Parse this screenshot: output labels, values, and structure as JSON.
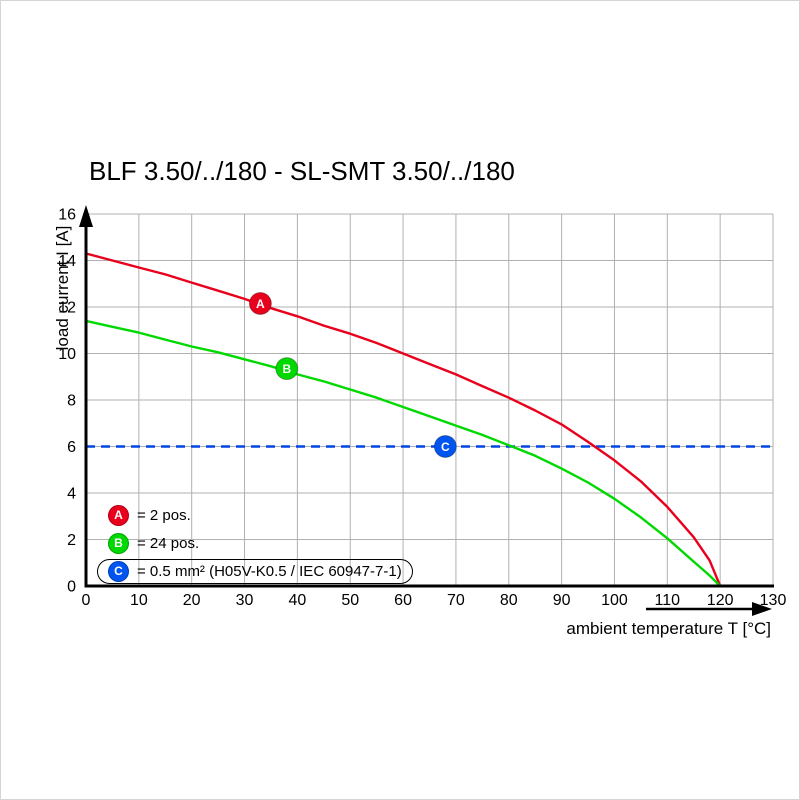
{
  "chart_data": {
    "type": "line",
    "title": "BLF 3.50/../180 - SL-SMT 3.50/../180",
    "xlabel": "ambient temperature T [°C]",
    "ylabel": "load current I [A]",
    "xlim": [
      0,
      130
    ],
    "ylim": [
      0,
      16
    ],
    "xticks": [
      0,
      10,
      20,
      30,
      40,
      50,
      60,
      70,
      80,
      90,
      100,
      110,
      120,
      130
    ],
    "yticks": [
      0,
      2,
      4,
      6,
      8,
      10,
      12,
      14,
      16
    ],
    "grid": true,
    "grid_color": "#b0b0b0",
    "axis_color": "#000000",
    "series": [
      {
        "name": "A",
        "label": "2 pos.",
        "color": "#e8001c",
        "points": [
          [
            0,
            14.3
          ],
          [
            5,
            14.0
          ],
          [
            10,
            13.7
          ],
          [
            15,
            13.4
          ],
          [
            20,
            13.05
          ],
          [
            25,
            12.7
          ],
          [
            30,
            12.35
          ],
          [
            35,
            11.95
          ],
          [
            40,
            11.6
          ],
          [
            45,
            11.2
          ],
          [
            50,
            10.85
          ],
          [
            55,
            10.45
          ],
          [
            60,
            10.0
          ],
          [
            65,
            9.55
          ],
          [
            70,
            9.1
          ],
          [
            75,
            8.6
          ],
          [
            80,
            8.1
          ],
          [
            85,
            7.55
          ],
          [
            90,
            6.95
          ],
          [
            95,
            6.2
          ],
          [
            100,
            5.4
          ],
          [
            105,
            4.5
          ],
          [
            110,
            3.4
          ],
          [
            115,
            2.1
          ],
          [
            118,
            1.1
          ],
          [
            120,
            0
          ]
        ]
      },
      {
        "name": "B",
        "label": "24 pos.",
        "color": "#00d900",
        "points": [
          [
            0,
            11.4
          ],
          [
            5,
            11.15
          ],
          [
            10,
            10.9
          ],
          [
            15,
            10.6
          ],
          [
            20,
            10.3
          ],
          [
            25,
            10.05
          ],
          [
            30,
            9.75
          ],
          [
            35,
            9.45
          ],
          [
            40,
            9.1
          ],
          [
            45,
            8.8
          ],
          [
            50,
            8.45
          ],
          [
            55,
            8.1
          ],
          [
            60,
            7.7
          ],
          [
            65,
            7.3
          ],
          [
            70,
            6.9
          ],
          [
            75,
            6.5
          ],
          [
            80,
            6.05
          ],
          [
            85,
            5.6
          ],
          [
            90,
            5.05
          ],
          [
            95,
            4.45
          ],
          [
            100,
            3.75
          ],
          [
            105,
            2.95
          ],
          [
            110,
            2.05
          ],
          [
            115,
            1.05
          ],
          [
            118,
            0.45
          ],
          [
            120,
            0
          ]
        ]
      }
    ],
    "reference_line": {
      "name": "C",
      "y": 6,
      "color": "#0046e0",
      "style": "dashed"
    },
    "markers": [
      {
        "letter": "A",
        "x": 33,
        "y": 12.15,
        "color": "#e8001c"
      },
      {
        "letter": "B",
        "x": 38,
        "y": 9.35,
        "color": "#00d900"
      },
      {
        "letter": "C",
        "x": 68,
        "y": 6.0,
        "color": "#0055f0"
      }
    ],
    "legend": [
      {
        "letter": "A",
        "color": "#e8001c",
        "text": "= 2 pos.",
        "boxed": false
      },
      {
        "letter": "B",
        "color": "#00d900",
        "text": "= 24 pos.",
        "boxed": false
      },
      {
        "letter": "C",
        "color": "#0055f0",
        "text": "= 0.5 mm² (H05V-K0.5 / IEC 60947-7-1)",
        "boxed": true
      }
    ]
  }
}
